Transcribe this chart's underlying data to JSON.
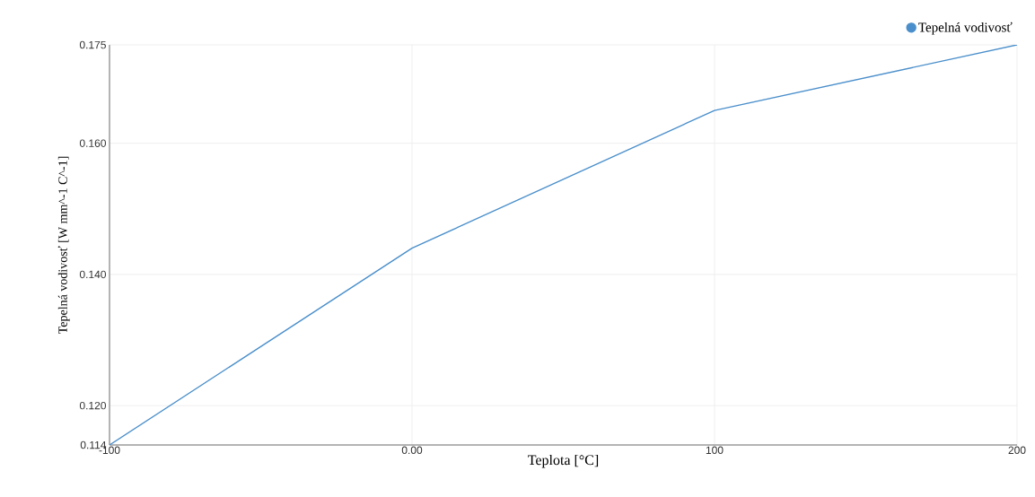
{
  "chart_data": {
    "type": "line",
    "xlabel": "Teplota [°C]",
    "ylabel": "Tepelná vodivosť [W mm^-1 C^-1]",
    "x": [
      -100,
      0,
      100,
      200
    ],
    "series": [
      {
        "name": "Tepelná vodivosť",
        "color": "#4a8fcb",
        "values": [
          0.114,
          0.144,
          0.165,
          0.175
        ]
      }
    ],
    "xlim": [
      -100,
      200
    ],
    "xticks": [
      -100,
      {
        "value": 0,
        "label": "0.00"
      },
      100,
      200
    ],
    "ylim": [
      0.114,
      0.175
    ],
    "yticks": [
      0.114,
      {
        "value": 0.12,
        "label": "0.120"
      },
      {
        "value": 0.14,
        "label": "0.140"
      },
      {
        "value": 0.16,
        "label": "0.160"
      },
      0.175
    ],
    "grid": true,
    "legend": "top right",
    "marker": "none",
    "line_style": "solid"
  }
}
